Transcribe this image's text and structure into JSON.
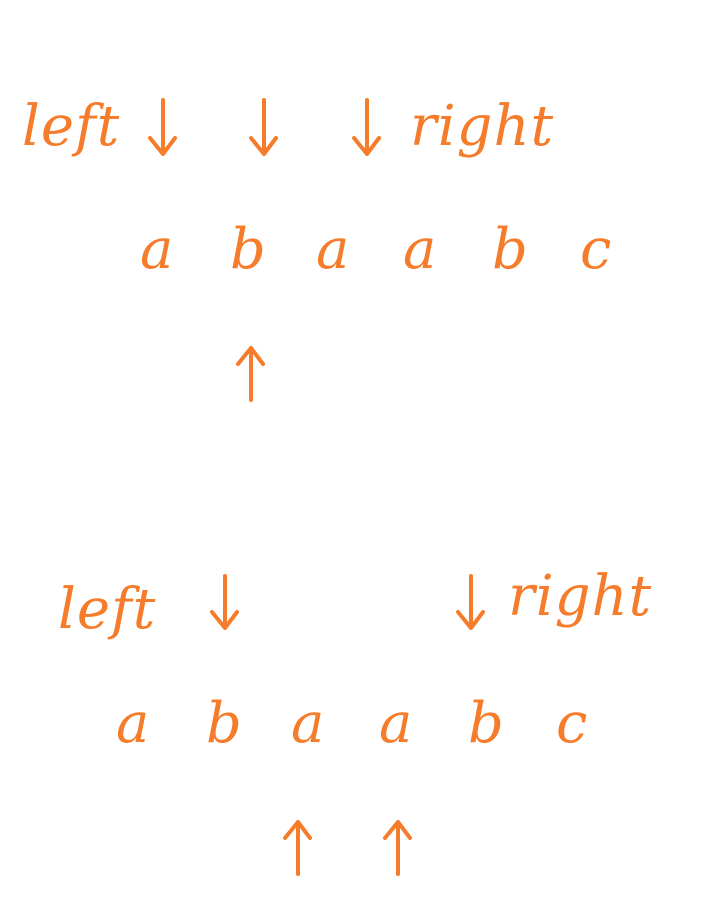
{
  "accent_color": "#F57C2A",
  "diagram": {
    "top": {
      "left_label": "left",
      "right_label": "right",
      "letters": [
        "a",
        "b",
        "a",
        "a",
        "b",
        "c"
      ]
    },
    "bottom": {
      "left_label": "left",
      "right_label": "right",
      "letters": [
        "a",
        "b",
        "a",
        "a",
        "b",
        "c"
      ]
    }
  }
}
